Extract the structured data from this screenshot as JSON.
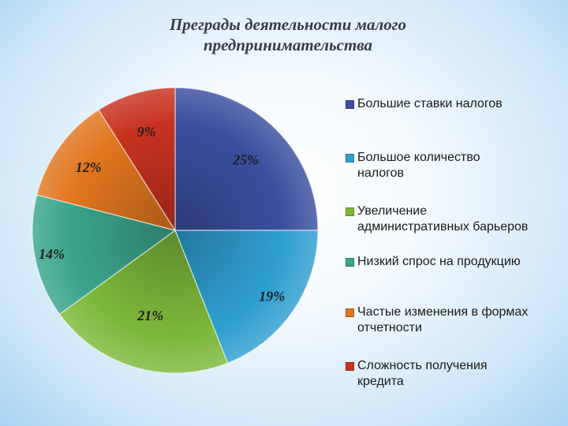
{
  "chart_data": {
    "type": "pie",
    "title_lines": [
      "Преграды деятельности малого",
      "предпринимательства"
    ],
    "legend_position": "right",
    "categories": [
      "Большие ставки налогов",
      "Большое количество налогов",
      "Увеличение административных барьеров",
      "Низкий спрос на продукцию",
      "Частые изменения в формах отчетности",
      "Сложность получения кредита"
    ],
    "legend_lines": [
      [
        "Большие ставки налогов"
      ],
      [
        "Большое количество",
        "налогов"
      ],
      [
        "Увеличение",
        "административных барьеров"
      ],
      [
        "Низкий спрос на продукцию"
      ],
      [
        "Частые изменения в формах",
        "отчетности"
      ],
      [
        "Сложность получения",
        "кредита"
      ]
    ],
    "values": [
      25,
      19,
      21,
      14,
      12,
      9
    ],
    "data_labels": [
      "25%",
      "19%",
      "21%",
      "14%",
      "12%",
      "9%"
    ],
    "colors": [
      "#3b4f9e",
      "#2f9fd0",
      "#7db83a",
      "#3aa58c",
      "#e0761e",
      "#c8321f"
    ]
  }
}
